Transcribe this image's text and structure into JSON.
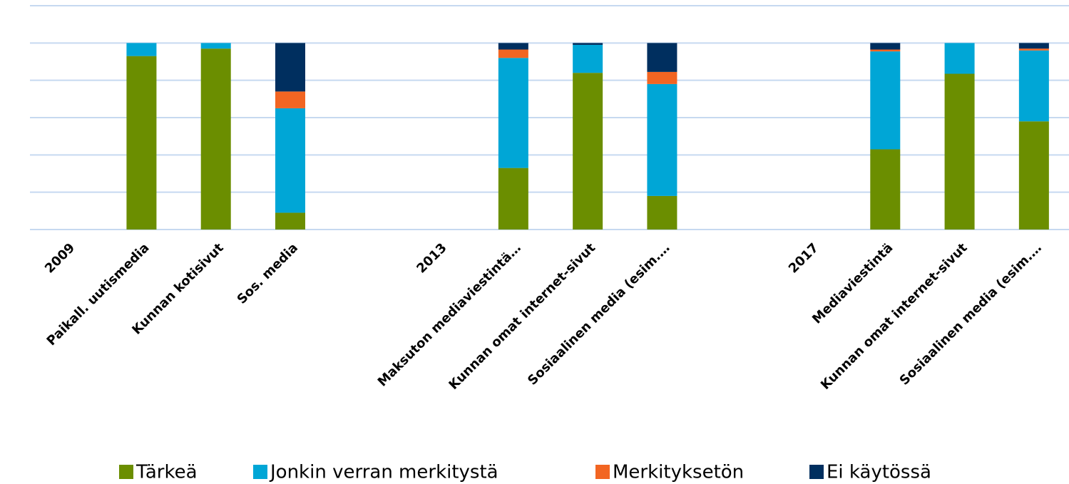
{
  "chart_data": {
    "type": "stacked_bar",
    "categories": [
      "2009",
      "Paikall. uutismedia",
      "Kunnan kotisivut",
      "Sos. media",
      null,
      "2013",
      "Maksuton mediaviestintä…",
      "Kunnan omat internet-sivut",
      "Sosiaalinen media (esim.…",
      null,
      "2017",
      "Mediaviestintä",
      "Kunnan omat internet-sivut",
      "Sosiaalinen media (esim.…"
    ],
    "series": [
      {
        "name": "Tärkeä",
        "color": "#6b8e00",
        "values": [
          null,
          93,
          97,
          9,
          null,
          null,
          33,
          84,
          18,
          null,
          null,
          43,
          83.5,
          58
        ]
      },
      {
        "name": "Jonkin verran merkitystä",
        "color": "#00a6d6",
        "values": [
          null,
          7,
          3,
          56,
          null,
          null,
          59,
          15,
          60,
          null,
          null,
          52.5,
          16.5,
          38
        ]
      },
      {
        "name": "Merkityksetön",
        "color": "#f26522",
        "values": [
          null,
          0,
          0,
          9,
          null,
          null,
          4.5,
          0,
          6.5,
          null,
          null,
          1,
          0,
          1
        ]
      },
      {
        "name": "Ei käytössä",
        "color": "#002f5f",
        "values": [
          null,
          0,
          0,
          26,
          null,
          null,
          3.5,
          1,
          15.5,
          null,
          null,
          3.5,
          0,
          3
        ]
      }
    ],
    "ylim": [
      0,
      120
    ],
    "yticks": [
      0,
      20,
      40,
      60,
      80,
      100,
      120
    ],
    "grid": true,
    "legend": "bottom"
  }
}
